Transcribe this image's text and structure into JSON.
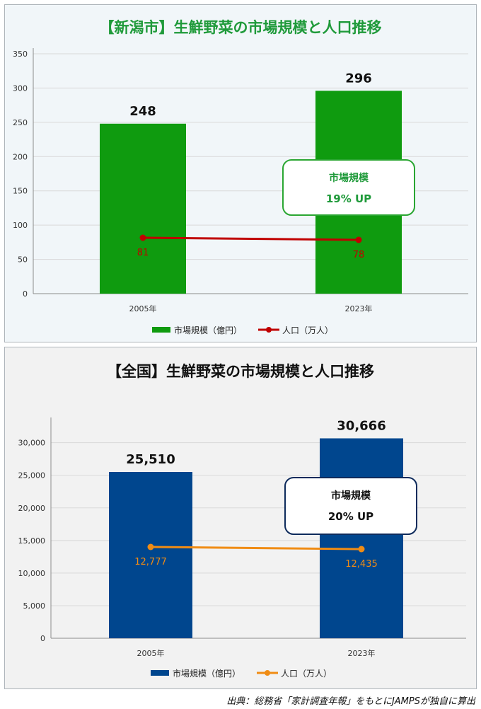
{
  "chart_data": [
    {
      "type": "bar",
      "title": "【新潟市】生鮮野菜の市場規模と人口推移",
      "categories": [
        "2005年",
        "2023年"
      ],
      "series": [
        {
          "name": "市場規模（億円）",
          "type": "bar",
          "values": [
            248,
            296
          ],
          "labels": [
            "248",
            "296"
          ],
          "color": "#0f9b0f"
        },
        {
          "name": "人口（万人）",
          "type": "line",
          "values": [
            81,
            78
          ],
          "labels": [
            "81",
            "78"
          ],
          "color": "#c00000"
        }
      ],
      "ylim": [
        0,
        350
      ],
      "yticks": [
        0,
        50,
        100,
        150,
        200,
        250,
        300,
        350
      ],
      "ytick_labels": [
        "0",
        "50",
        "100",
        "150",
        "200",
        "250",
        "300",
        "350"
      ],
      "grid": true,
      "legend": "bottom",
      "annotation": {
        "line1": "市場規模",
        "line2": "19% UP",
        "border_color": "#2aa632",
        "text_color": "#1f9a3a"
      }
    },
    {
      "type": "bar",
      "title": "【全国】生鮮野菜の市場規模と人口推移",
      "categories": [
        "2005年",
        "2023年"
      ],
      "series": [
        {
          "name": "市場規模（億円）",
          "type": "bar",
          "values": [
            25510,
            30666
          ],
          "labels": [
            "25,510",
            "30,666"
          ],
          "color": "#00468e"
        },
        {
          "name": "人口（万人）",
          "type": "line",
          "values": [
            12777,
            12435
          ],
          "labels": [
            "12,777",
            "12,435"
          ],
          "color": "#f08c14"
        }
      ],
      "ylim": [
        0,
        33000
      ],
      "yticks": [
        0,
        5000,
        10000,
        15000,
        20000,
        25000,
        30000
      ],
      "ytick_labels": [
        "0",
        "5,000",
        "10,000",
        "15,000",
        "20,000",
        "25,000",
        "30,000"
      ],
      "grid": true,
      "legend": "bottom",
      "annotation": {
        "line1": "市場規模",
        "line2": "20% UP",
        "border_color": "#0e2b5c",
        "text_color": "#111111"
      }
    }
  ],
  "source": "出典：総務省「家計調査年報」をもとにJAMPSが独自に算出"
}
